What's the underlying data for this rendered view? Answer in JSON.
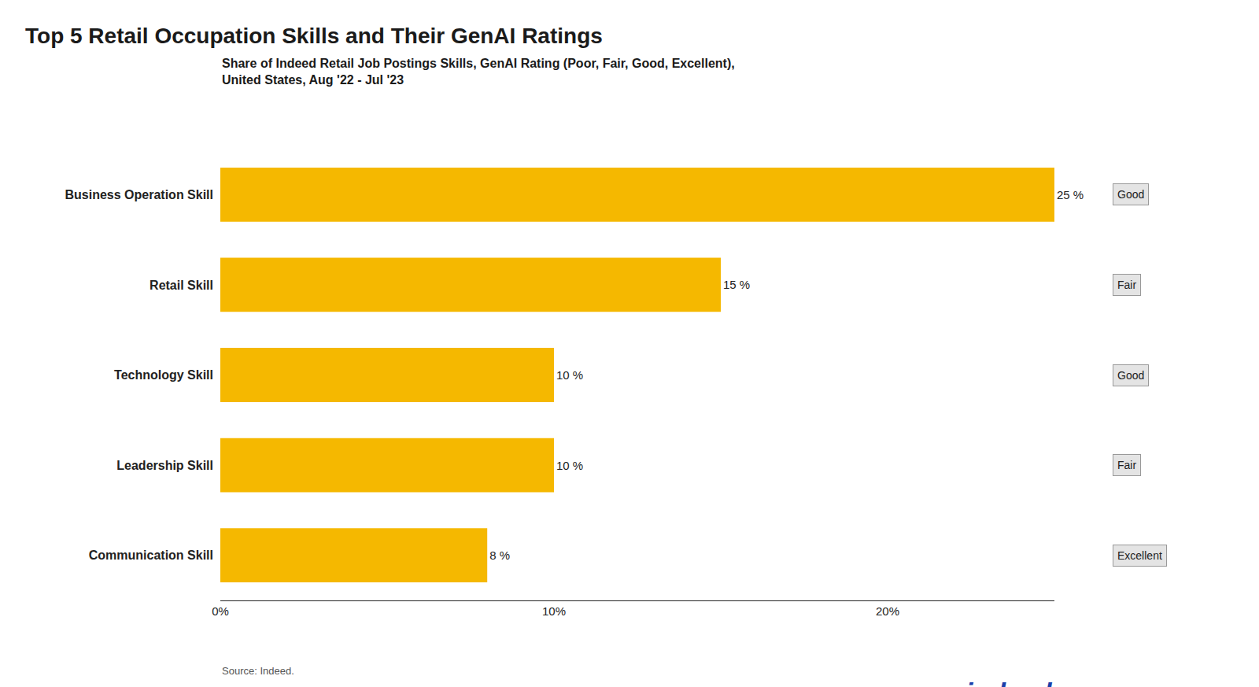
{
  "chart_data": {
    "type": "bar",
    "orientation": "horizontal",
    "title": "Top 5 Retail Occupation Skills and Their GenAI Ratings",
    "subtitle": "Share of Indeed Retail Job Postings Skills, GenAI Rating (Poor, Fair, Good, Excellent),\nUnited States, Aug '22 - Jul '23",
    "categories": [
      "Business Operation Skill",
      "Retail Skill",
      "Technology Skill",
      "Leadership Skill",
      "Communication Skill"
    ],
    "values": [
      25,
      15,
      10,
      10,
      8
    ],
    "value_labels": [
      "25 %",
      "15 %",
      "10 %",
      "10 %",
      "8 %"
    ],
    "data_labels": true,
    "color": "#F5B800",
    "xlim": [
      0,
      25
    ],
    "xticks": [
      {
        "value": 0,
        "label": "0%"
      },
      {
        "value": 10,
        "label": "10%"
      },
      {
        "value": 20,
        "label": "20%"
      }
    ],
    "grid": false,
    "annotations": [
      {
        "text": "Good",
        "category": "Business Operation Skill",
        "color": "#e4e4e4"
      },
      {
        "text": "Fair",
        "category": "Retail Skill",
        "color": "#e4e4e4"
      },
      {
        "text": "Good",
        "category": "Technology Skill",
        "color": "#e4e4e4"
      },
      {
        "text": "Fair",
        "category": "Leadership Skill",
        "color": "#e4e4e4"
      },
      {
        "text": "Excellent",
        "category": "Communication Skill",
        "color": "#e4e4e4"
      },
      {
        "text": "Source: Indeed."
      },
      {
        "text": "indeed",
        "color": "#1a3faa"
      }
    ]
  }
}
